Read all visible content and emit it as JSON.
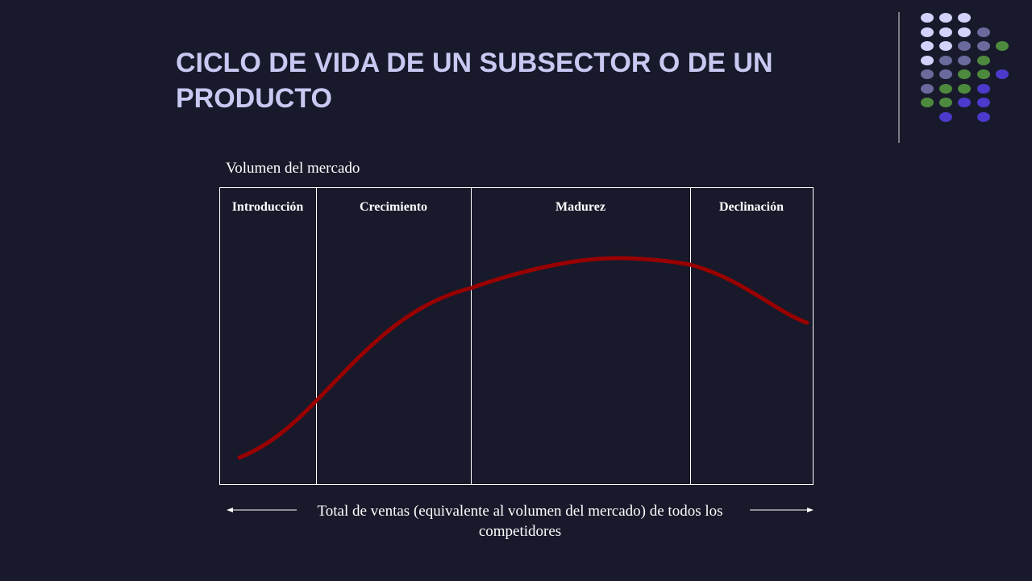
{
  "title": "CICLO DE VIDA DE UN SUBSECTOR O DE UN PRODUCTO",
  "diagram": {
    "y_label": "Volumen del mercado",
    "stages": [
      "Introducción",
      "Crecimiento",
      "Madurez",
      "Declinación"
    ],
    "x_label": "Total de ventas (equivalente al volumen del mercado) de todos los competidores"
  }
}
